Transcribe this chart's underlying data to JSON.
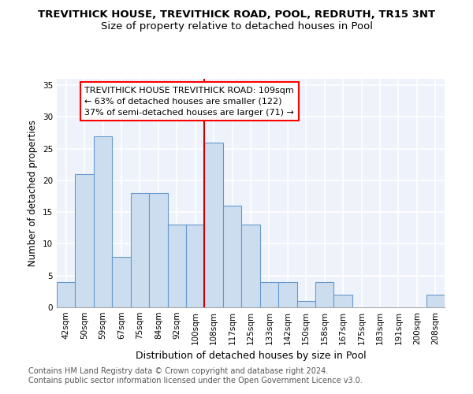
{
  "title": "TREVITHICK HOUSE, TREVITHICK ROAD, POOL, REDRUTH, TR15 3NT",
  "subtitle": "Size of property relative to detached houses in Pool",
  "xlabel": "Distribution of detached houses by size in Pool",
  "ylabel": "Number of detached properties",
  "categories": [
    "42sqm",
    "50sqm",
    "59sqm",
    "67sqm",
    "75sqm",
    "84sqm",
    "92sqm",
    "100sqm",
    "108sqm",
    "117sqm",
    "125sqm",
    "133sqm",
    "142sqm",
    "150sqm",
    "158sqm",
    "167sqm",
    "175sqm",
    "183sqm",
    "191sqm",
    "200sqm",
    "208sqm"
  ],
  "values": [
    4,
    21,
    27,
    8,
    18,
    18,
    13,
    13,
    26,
    16,
    13,
    4,
    4,
    1,
    4,
    2,
    0,
    0,
    0,
    0,
    2
  ],
  "bar_color": "#ccddf0",
  "bar_edge_color": "#6699cc",
  "vline_x_index": 8,
  "vline_color": "#cc0000",
  "annotation_box_text": "TREVITHICK HOUSE TREVITHICK ROAD: 109sqm\n← 63% of detached houses are smaller (122)\n37% of semi-detached houses are larger (71) →",
  "ylim": [
    0,
    36
  ],
  "yticks": [
    0,
    5,
    10,
    15,
    20,
    25,
    30,
    35
  ],
  "fig_background_color": "#ffffff",
  "plot_background_color": "#eef3fb",
  "grid_color": "#ffffff",
  "footer_text": "Contains HM Land Registry data © Crown copyright and database right 2024.\nContains public sector information licensed under the Open Government Licence v3.0.",
  "title_fontsize": 9.5,
  "subtitle_fontsize": 9.5,
  "xlabel_fontsize": 9,
  "ylabel_fontsize": 8.5,
  "tick_fontsize": 7.5,
  "annotation_fontsize": 8,
  "footer_fontsize": 7
}
